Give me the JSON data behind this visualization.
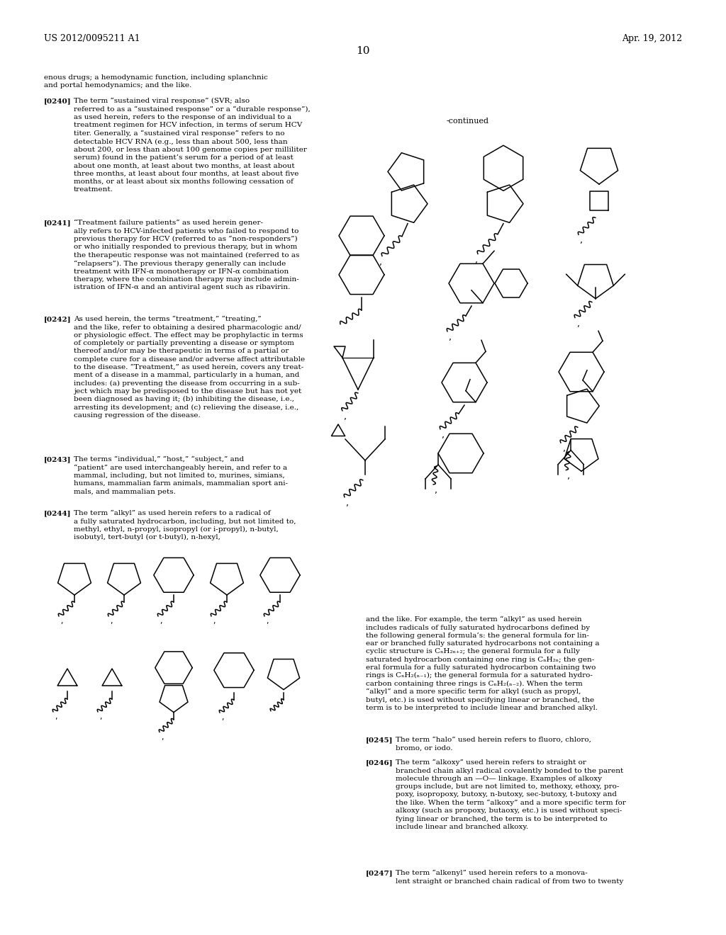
{
  "page_header_left": "US 2012/0095211 A1",
  "page_header_right": "Apr. 19, 2012",
  "page_number": "10",
  "background_color": "#ffffff",
  "text_color": "#000000",
  "continued_label": "-continued"
}
